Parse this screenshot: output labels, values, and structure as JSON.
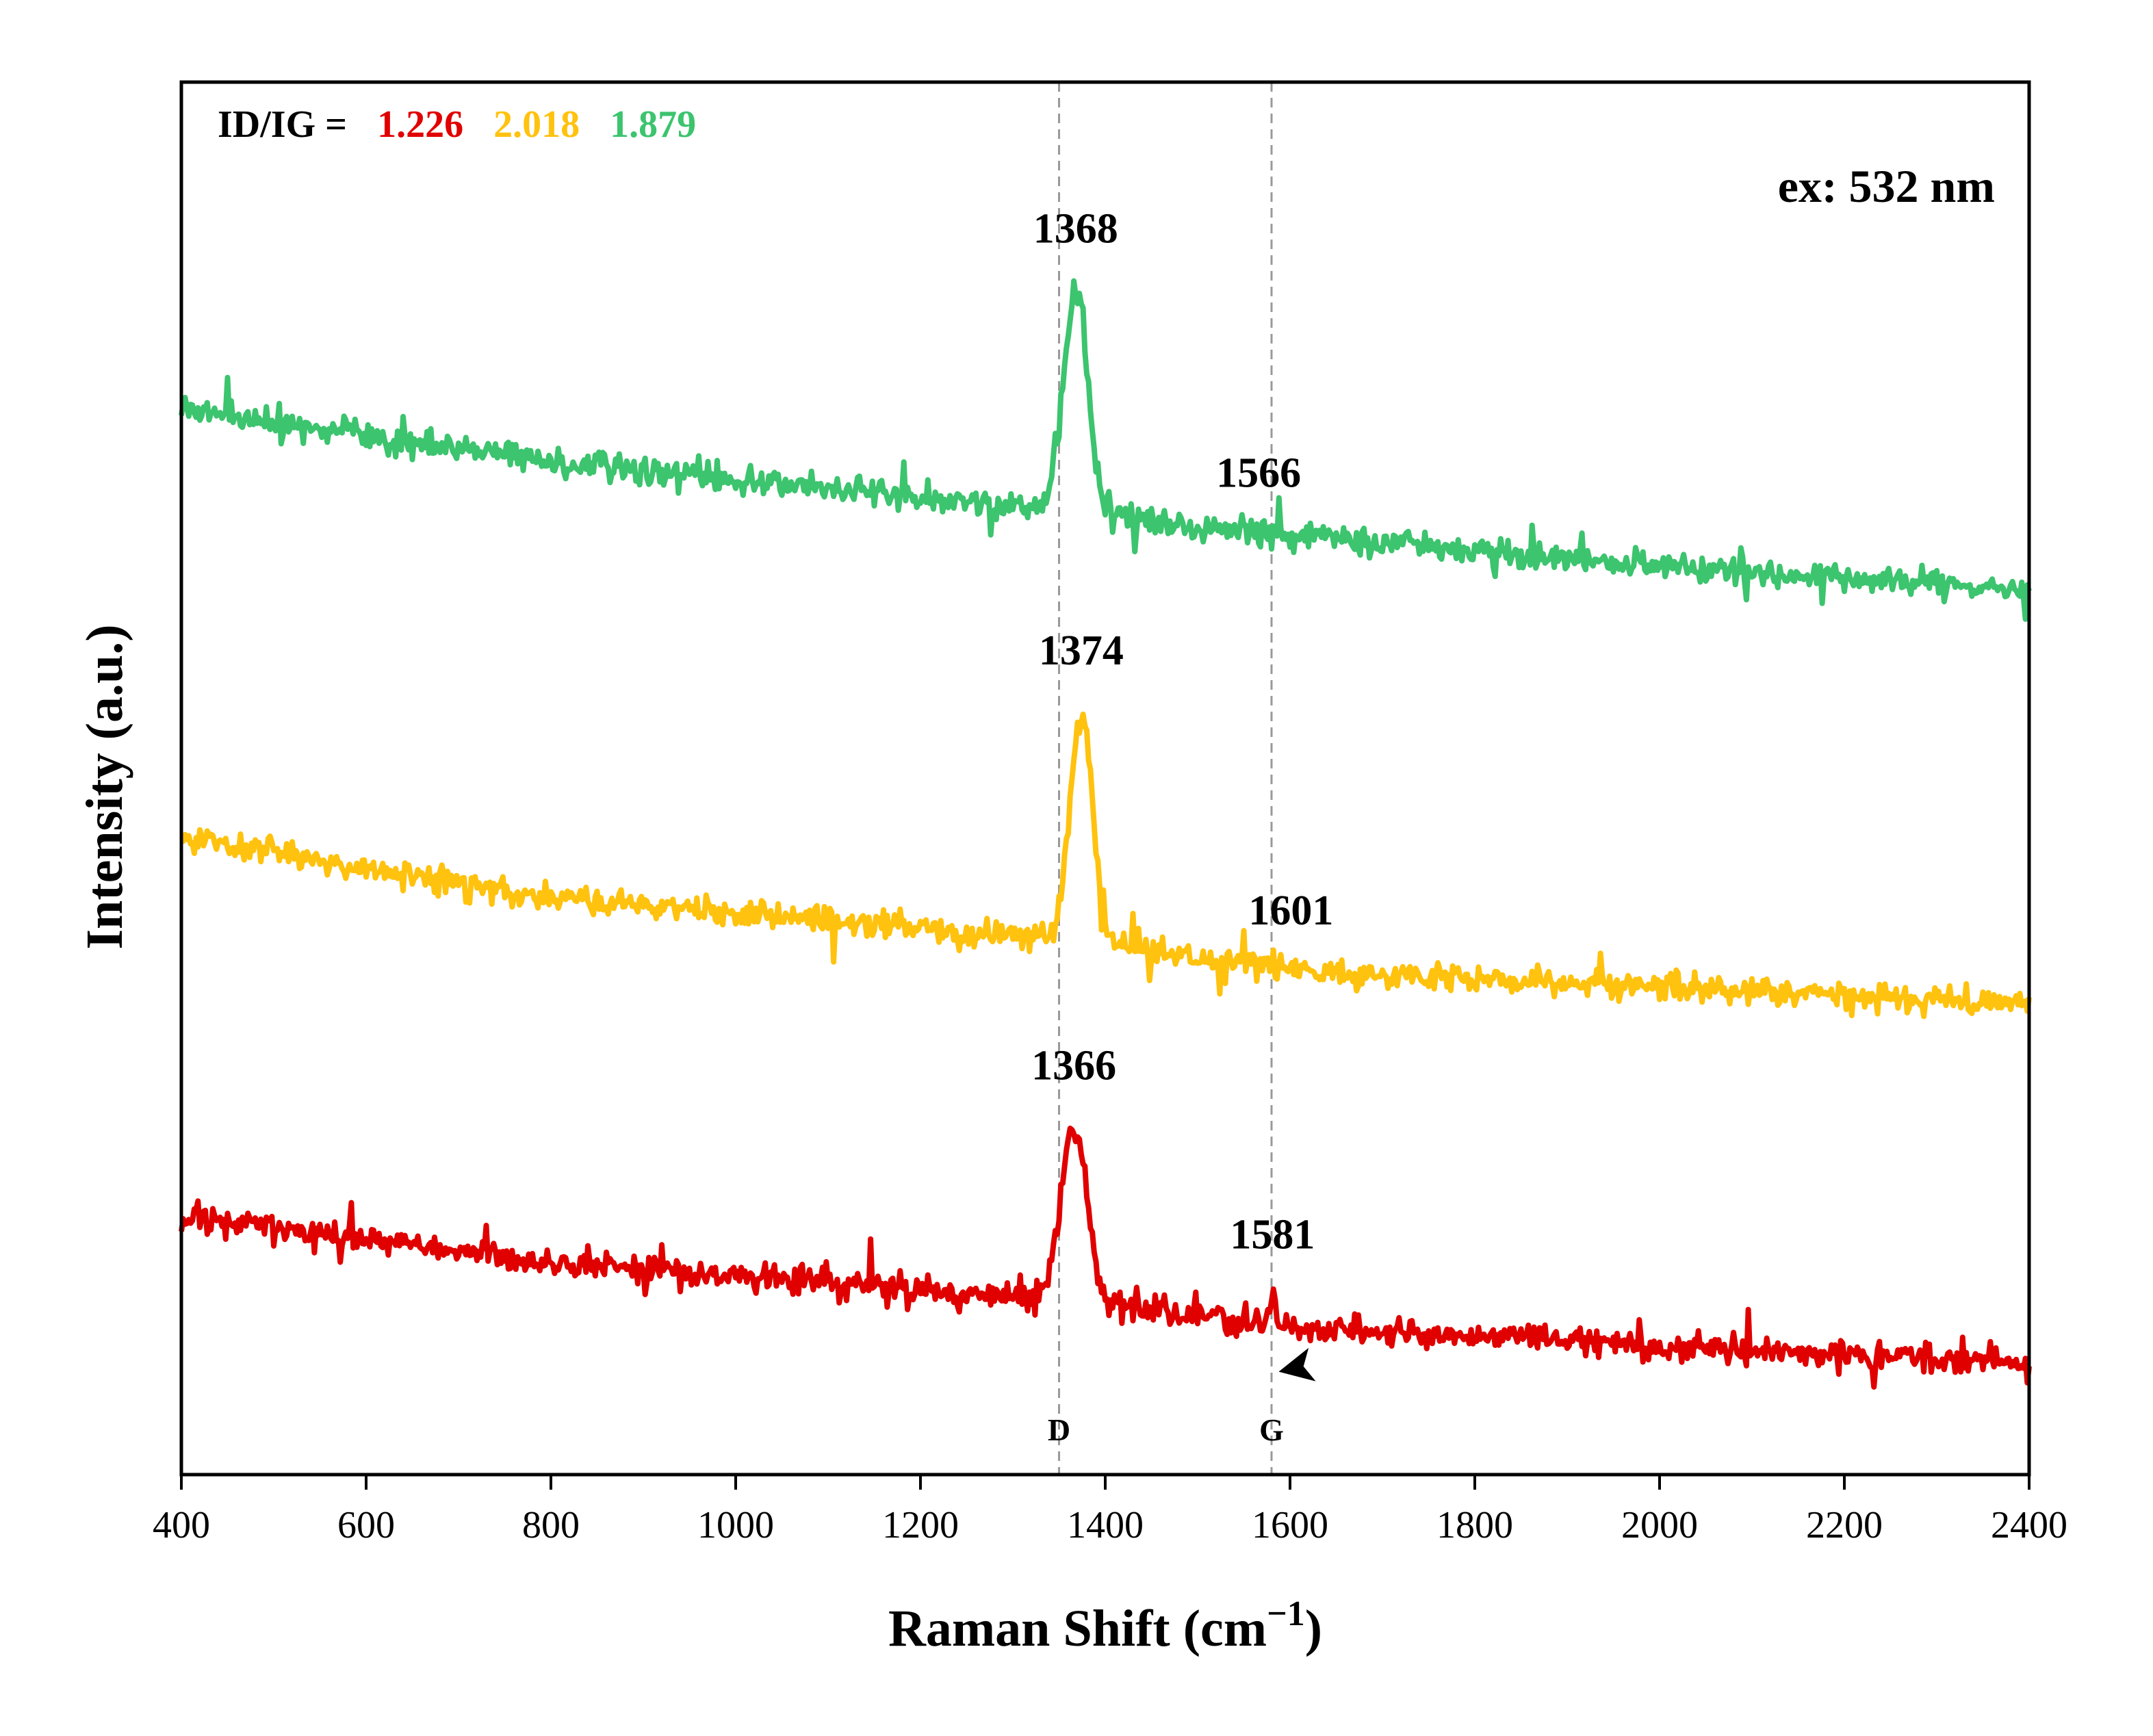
{
  "chart_data": {
    "type": "line",
    "title": "",
    "xlabel": "Raman Shift (cm",
    "xlabel_sup": "−1",
    "xlabel_close": ")",
    "ylabel": "Intensity (a.u.)",
    "xlim": [
      400,
      2400
    ],
    "ylim": [
      0,
      100
    ],
    "x_ticks": [
      "400",
      "600",
      "800",
      "1000",
      "1200",
      "1400",
      "1600",
      "1800",
      "2000",
      "2200",
      "2400"
    ],
    "x_tick_values": [
      400,
      600,
      800,
      1000,
      1200,
      1400,
      1600,
      1800,
      2000,
      2200,
      2400
    ],
    "y_ticks_shown": false,
    "grid": false,
    "excitation": "ex: 532 nm",
    "ratio_prefix": "ID/IG =",
    "reference_lines": [
      {
        "label": "D",
        "x": 1350
      },
      {
        "label": "G",
        "x": 1580
      }
    ],
    "series": [
      {
        "color": "#e00000",
        "ratio": "1.226",
        "baseline": [
          [
            400,
            18.5
          ],
          [
            800,
            15.3
          ],
          [
            1350,
            12.6
          ],
          [
            1600,
            10.6
          ],
          [
            2000,
            9.2
          ],
          [
            2400,
            8.0
          ]
        ],
        "peaks": [
          {
            "x": 1366,
            "height": 12.5,
            "width": 14,
            "label": "1366"
          },
          {
            "x": 1581,
            "height": 2.3,
            "width": 3,
            "label": "1581"
          }
        ],
        "noise": 1.0
      },
      {
        "color": "#ffc20e",
        "ratio": "2.018",
        "baseline": [
          [
            400,
            45.8
          ],
          [
            800,
            41.4
          ],
          [
            1350,
            38.5
          ],
          [
            1600,
            36.2
          ],
          [
            2000,
            35.0
          ],
          [
            2400,
            33.8
          ]
        ],
        "peaks": [
          {
            "x": 1374,
            "height": 16.5,
            "width": 12,
            "label": "1374"
          }
        ],
        "noise": 1.0,
        "label_1601": {
          "x": 1601,
          "text": "1601"
        }
      },
      {
        "color": "#3cc46e",
        "ratio": "1.879",
        "baseline": [
          [
            400,
            76.5
          ],
          [
            800,
            72.8
          ],
          [
            1350,
            69.2
          ],
          [
            1600,
            67.4
          ],
          [
            2000,
            65.3
          ],
          [
            2400,
            63.5
          ]
        ],
        "peaks": [
          {
            "x": 1368,
            "height": 16.0,
            "width": 13,
            "label": "1368"
          }
        ],
        "noise": 1.0,
        "label_1566": {
          "x": 1566,
          "text": "1566"
        }
      }
    ]
  }
}
